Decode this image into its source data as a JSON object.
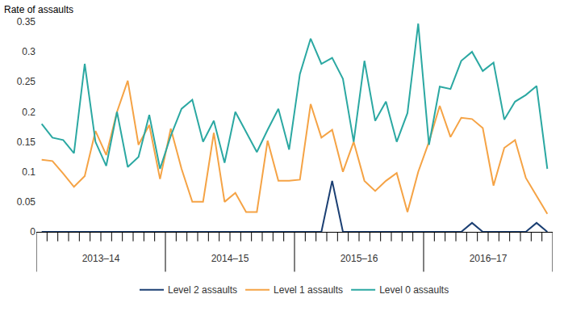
{
  "chart_data": {
    "type": "line",
    "ylabel": "Rate of assaults",
    "categories": [
      null,
      null,
      null,
      null,
      null,
      "2013–14",
      null,
      null,
      null,
      null,
      null,
      null,
      null,
      null,
      null,
      null,
      null,
      "2014–15",
      null,
      null,
      null,
      null,
      null,
      null,
      null,
      null,
      null,
      null,
      null,
      "2015–16",
      null,
      null,
      null,
      null,
      null,
      null,
      null,
      null,
      null,
      null,
      null,
      "2016–17",
      null,
      null,
      null,
      null,
      null,
      null
    ],
    "series": [
      {
        "name": "Level 2 assaults",
        "color": "#1b3f73",
        "values": [
          0,
          0,
          0,
          0,
          0,
          0,
          0,
          0,
          0,
          0,
          0,
          0,
          0,
          0,
          0,
          0,
          0,
          0,
          0,
          0,
          0,
          0,
          0,
          0,
          0,
          0,
          0,
          0.085,
          0,
          0,
          0,
          0,
          0,
          0,
          0,
          0,
          0,
          0,
          0,
          0,
          0.015,
          0,
          0,
          0,
          0,
          0,
          0.015,
          0
        ]
      },
      {
        "name": "Level 1 assaults",
        "color": "#f5a345",
        "values": [
          0.12,
          0.118,
          0.097,
          0.075,
          0.093,
          0.168,
          0.128,
          0.2,
          0.252,
          0.145,
          0.178,
          0.088,
          0.172,
          0.105,
          0.05,
          0.05,
          0.165,
          0.05,
          0.065,
          0.033,
          0.033,
          0.152,
          0.085,
          0.085,
          0.087,
          0.213,
          0.157,
          0.17,
          0.1,
          0.15,
          0.085,
          0.068,
          0.085,
          0.098,
          0.033,
          0.1,
          0.15,
          0.21,
          0.158,
          0.19,
          0.188,
          0.173,
          0.077,
          0.14,
          0.153,
          0.09,
          0.06,
          0.03
        ]
      },
      {
        "name": "Level 0 assaults",
        "color": "#2ba8a2",
        "values": [
          0.18,
          0.157,
          0.153,
          0.131,
          0.28,
          0.15,
          0.11,
          0.2,
          0.108,
          0.125,
          0.195,
          0.105,
          0.16,
          0.205,
          0.22,
          0.15,
          0.185,
          0.115,
          0.2,
          0.167,
          0.133,
          0.17,
          0.205,
          0.137,
          0.263,
          0.322,
          0.28,
          0.29,
          0.255,
          0.15,
          0.285,
          0.185,
          0.217,
          0.15,
          0.198,
          0.347,
          0.145,
          0.242,
          0.238,
          0.285,
          0.3,
          0.268,
          0.282,
          0.187,
          0.217,
          0.228,
          0.243,
          0.105
        ]
      }
    ],
    "ylim": [
      0,
      0.35
    ],
    "yticks": [
      0,
      0.05,
      0.1,
      0.15,
      0.2,
      0.25,
      0.3,
      0.35
    ],
    "grid": false,
    "legend": "bottom"
  }
}
